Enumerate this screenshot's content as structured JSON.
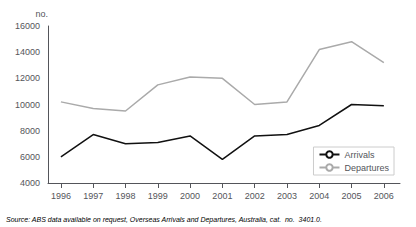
{
  "chart_data": {
    "type": "line",
    "x": [
      1996,
      1997,
      1998,
      1999,
      2000,
      2001,
      2002,
      2003,
      2004,
      2005,
      2006
    ],
    "series": [
      {
        "name": "Arrivals",
        "color": "#111111",
        "values": [
          6000,
          7700,
          7000,
          7100,
          7600,
          5800,
          7600,
          7700,
          8400,
          10000,
          9900
        ]
      },
      {
        "name": "Departures",
        "color": "#aaaaaa",
        "values": [
          10200,
          9700,
          9500,
          11500,
          12100,
          12000,
          10000,
          10200,
          14200,
          14800,
          13200
        ]
      }
    ],
    "xlim": [
      1995.6,
      2006.5
    ],
    "xticks": [
      1996,
      1997,
      1998,
      1999,
      2000,
      2001,
      2002,
      2003,
      2004,
      2005,
      2006
    ],
    "ylim": [
      4000,
      16000
    ],
    "yticks": [
      4000,
      6000,
      8000,
      10000,
      12000,
      14000,
      16000
    ],
    "ylabel": "no.",
    "source": "Source: ABS data available on request, Overseas Arrivals and Departures, Australia, cat.  no.  3401.0.",
    "legend": "lower right",
    "grid": false
  }
}
